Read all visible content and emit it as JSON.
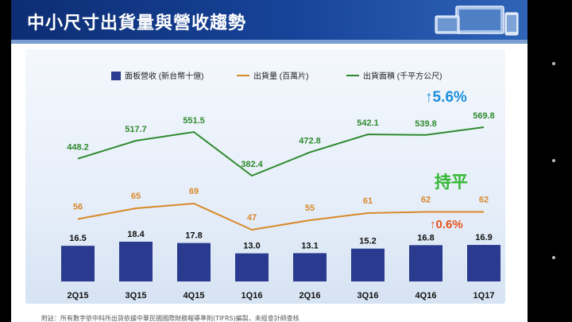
{
  "title": "中小尺寸出貨量與營收趨勢",
  "colors": {
    "bar": "#2a3b8f",
    "shipment": "#d8892a",
    "area": "#2f8a2f",
    "up_blue": "#1d8fdc",
    "up_orange": "#e8541a",
    "flat_green": "#33b833"
  },
  "chart_data": {
    "type": "bar",
    "categories": [
      "2Q15",
      "3Q15",
      "4Q15",
      "1Q16",
      "2Q16",
      "3Q16",
      "4Q16",
      "1Q17"
    ],
    "series": [
      {
        "name": "面板營收 (新台幣十億)",
        "kind": "bar",
        "values": [
          16.5,
          18.4,
          17.8,
          13.0,
          13.1,
          15.2,
          16.8,
          16.9
        ]
      },
      {
        "name": "出貨量 (百萬片)",
        "kind": "line",
        "values": [
          56,
          65,
          69,
          47,
          55,
          61,
          62,
          62
        ]
      },
      {
        "name": "出貨面積 (千平方公尺)",
        "kind": "line",
        "values": [
          448.2,
          517.7,
          551.5,
          382.4,
          472.8,
          542.1,
          539.8,
          569.8
        ]
      }
    ],
    "value_labels": {
      "bar": [
        "16.5",
        "18.4",
        "17.8",
        "13.0",
        "13.1",
        "15.2",
        "16.8",
        "16.9"
      ],
      "shipment": [
        "56",
        "65",
        "69",
        "47",
        "55",
        "61",
        "62",
        "62"
      ],
      "area": [
        "448.2",
        "517.7",
        "551.5",
        "382.4",
        "472.8",
        "542.1",
        "539.8",
        "569.8"
      ]
    },
    "legend_position": "top",
    "annotations": {
      "area_change": "5.6%",
      "shipment_change": "持平",
      "revenue_change": "0.6%"
    }
  },
  "footnote": "附註：所有數字依中科所出貨依據中華民國國際財務報導準則(TIFRS)編製，未經會計師查核"
}
